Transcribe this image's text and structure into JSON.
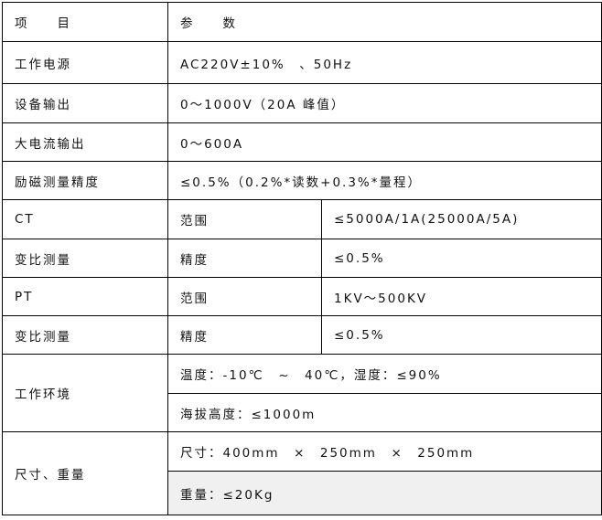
{
  "header": {
    "item": "项　　目",
    "param": "参　　数"
  },
  "rows": {
    "power": {
      "label": "工作电源",
      "value": "AC220V±10%　、50Hz"
    },
    "output": {
      "label": "设备输出",
      "value": "0～1000V（20A 峰值）"
    },
    "current": {
      "label": "大电流输出",
      "value": "0～600A"
    },
    "excitation": {
      "label": "励磁测量精度",
      "value": "≤0.5%（0.2%*读数+0.3%*量程）"
    },
    "ct_range": {
      "label": "CT",
      "sub": "范围",
      "value": "≤5000A/1A(25000A/5A)"
    },
    "ct_acc": {
      "label": "变比测量",
      "sub": "精度",
      "value": "≤0.5%"
    },
    "pt_range": {
      "label": "PT",
      "sub": "范围",
      "value": "1KV～500KV"
    },
    "pt_acc": {
      "label": "变比测量",
      "sub": "精度",
      "value": "≤0.5%"
    },
    "env": {
      "label": "工作环境",
      "value1": "温度：-10℃　~　40℃，湿度：≤90%",
      "value2": "海拔高度：≤1000m"
    },
    "size": {
      "label": "尺寸、重量",
      "value1": "尺寸：400mm　×　250mm　×　250mm",
      "value2": "重量：≤20Kg"
    }
  }
}
